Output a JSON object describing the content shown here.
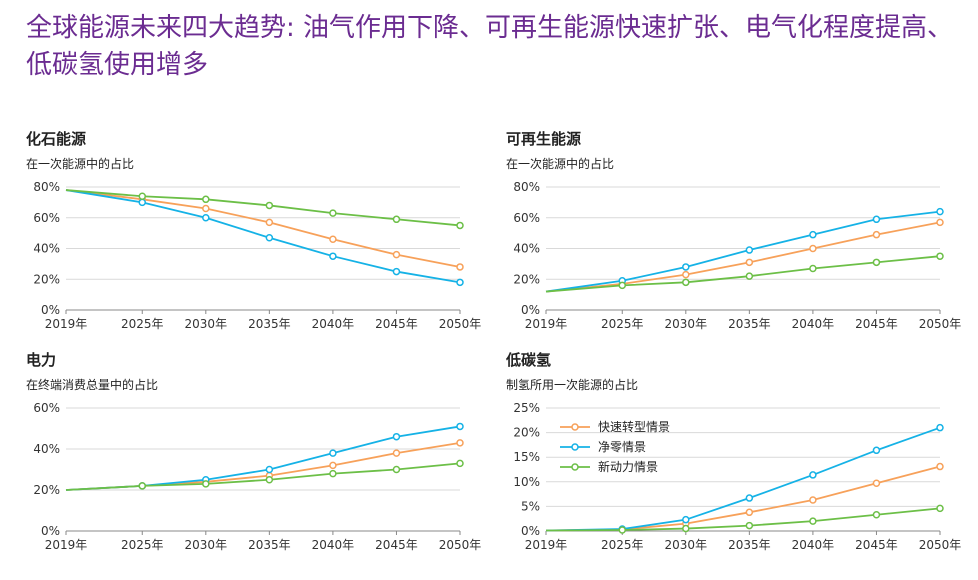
{
  "title": "全球能源未来四大趋势: 油气作用下降、可再生能源快速扩张、电气化程度提高、低碳氢使用增多",
  "colors": {
    "title": "#6b2c91",
    "rapid": "#f7a15a",
    "netzero": "#15b2e6",
    "momentum": "#6cbf47",
    "grid": "#d9d9d9",
    "axis": "#888888"
  },
  "chart_data": [
    {
      "type": "line",
      "title": "化石能源",
      "subtitle": "在一次能源中的占比",
      "x": [
        "2019年",
        "2025年",
        "2030年",
        "2035年",
        "2040年",
        "2045年",
        "2050年"
      ],
      "x_values": [
        2019,
        2025,
        2030,
        2035,
        2040,
        2045,
        2050
      ],
      "ylim": [
        0,
        80
      ],
      "yticks": [
        0,
        20,
        40,
        60,
        80
      ],
      "ytick_labels": [
        "0%",
        "20%",
        "40%",
        "60%",
        "80%"
      ],
      "grid": true,
      "series": [
        {
          "key": "rapid",
          "values": [
            78,
            72,
            66,
            57,
            46,
            36,
            28
          ]
        },
        {
          "key": "netzero",
          "values": [
            78,
            70,
            60,
            47,
            35,
            25,
            18
          ]
        },
        {
          "key": "momentum",
          "values": [
            78,
            74,
            72,
            68,
            63,
            59,
            55
          ]
        }
      ]
    },
    {
      "type": "line",
      "title": "可再生能源",
      "subtitle": "在一次能源中的占比",
      "x": [
        "2019年",
        "2025年",
        "2030年",
        "2035年",
        "2040年",
        "2045年",
        "2050年"
      ],
      "x_values": [
        2019,
        2025,
        2030,
        2035,
        2040,
        2045,
        2050
      ],
      "ylim": [
        0,
        80
      ],
      "yticks": [
        0,
        20,
        40,
        60,
        80
      ],
      "ytick_labels": [
        "0%",
        "20%",
        "40%",
        "60%",
        "80%"
      ],
      "grid": true,
      "series": [
        {
          "key": "rapid",
          "values": [
            12,
            17,
            23,
            31,
            40,
            49,
            57
          ]
        },
        {
          "key": "netzero",
          "values": [
            12,
            19,
            28,
            39,
            49,
            59,
            64
          ]
        },
        {
          "key": "momentum",
          "values": [
            12,
            16,
            18,
            22,
            27,
            31,
            35
          ]
        }
      ]
    },
    {
      "type": "line",
      "title": "电力",
      "subtitle": "在终端消费总量中的占比",
      "x": [
        "2019年",
        "2025年",
        "2030年",
        "2035年",
        "2040年",
        "2045年",
        "2050年"
      ],
      "x_values": [
        2019,
        2025,
        2030,
        2035,
        2040,
        2045,
        2050
      ],
      "ylim": [
        0,
        60
      ],
      "yticks": [
        0,
        20,
        40,
        60
      ],
      "ytick_labels": [
        "0%",
        "20%",
        "40%",
        "60%"
      ],
      "grid": true,
      "series": [
        {
          "key": "rapid",
          "values": [
            20,
            22,
            24,
            27,
            32,
            38,
            43
          ]
        },
        {
          "key": "netzero",
          "values": [
            20,
            22,
            25,
            30,
            38,
            46,
            51
          ]
        },
        {
          "key": "momentum",
          "values": [
            20,
            22,
            23,
            25,
            28,
            30,
            33
          ]
        }
      ]
    },
    {
      "type": "line",
      "title": "低碳氢",
      "subtitle": "制氢所用一次能源的占比",
      "x": [
        "2019年",
        "2025年",
        "2030年",
        "2035年",
        "2040年",
        "2045年",
        "2050年"
      ],
      "x_values": [
        2019,
        2025,
        2030,
        2035,
        2040,
        2045,
        2050
      ],
      "ylim": [
        0,
        25
      ],
      "yticks": [
        0,
        5,
        10,
        15,
        20,
        25
      ],
      "ytick_labels": [
        "0%",
        "5%",
        "10%",
        "15%",
        "20%",
        "25%"
      ],
      "grid": true,
      "legend": "top-left",
      "series": [
        {
          "key": "rapid",
          "name": "快速转型情景",
          "values": [
            0.1,
            0.3,
            1.5,
            3.8,
            6.3,
            9.7,
            13.1
          ]
        },
        {
          "key": "netzero",
          "name": "净零情景",
          "values": [
            0.1,
            0.4,
            2.3,
            6.7,
            11.4,
            16.4,
            21
          ]
        },
        {
          "key": "momentum",
          "name": "新动力情景",
          "values": [
            0.1,
            0.2,
            0.5,
            1.1,
            2.0,
            3.3,
            4.6
          ]
        }
      ]
    }
  ]
}
